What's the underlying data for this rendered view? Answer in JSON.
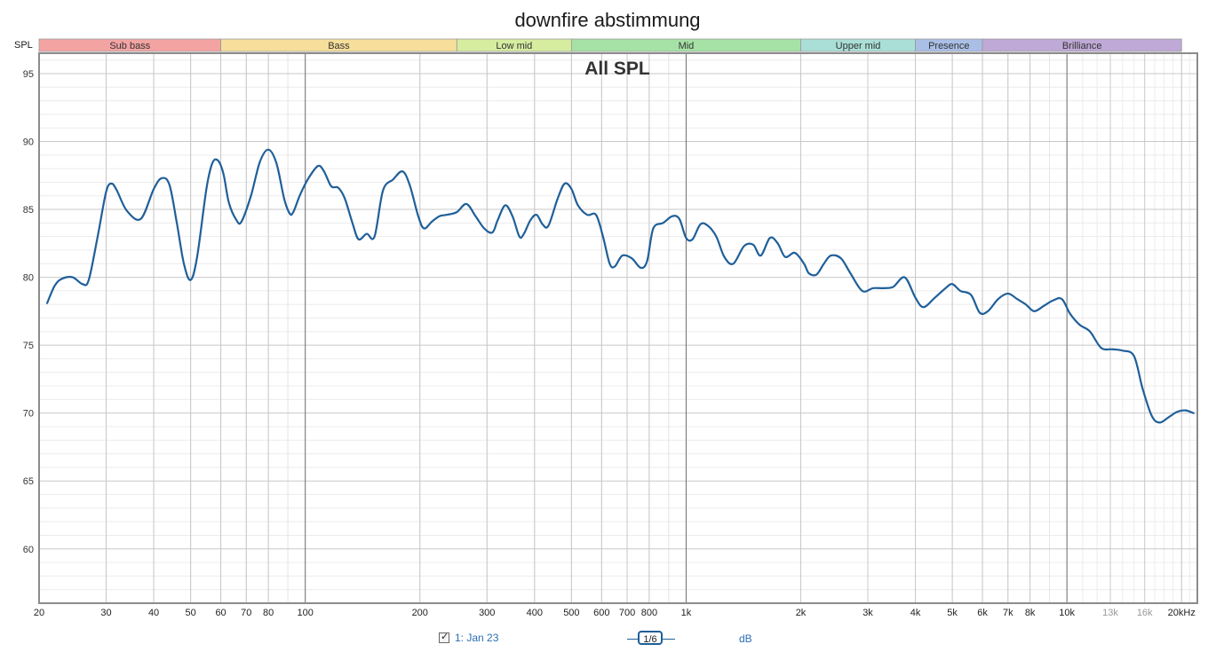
{
  "window_title": "downfire abstimmung",
  "band_row_label": "SPL",
  "bands": [
    {
      "name": "Sub bass",
      "from": 20,
      "to": 60,
      "color": "#f4a3a3"
    },
    {
      "name": "Bass",
      "from": 60,
      "to": 250,
      "color": "#f6df9a"
    },
    {
      "name": "Low mid",
      "from": 250,
      "to": 500,
      "color": "#d6eda0"
    },
    {
      "name": "Mid",
      "from": 500,
      "to": 2000,
      "color": "#a6e2a6"
    },
    {
      "name": "Upper mid",
      "from": 2000,
      "to": 4000,
      "color": "#a9dfd6"
    },
    {
      "name": "Presence",
      "from": 4000,
      "to": 6000,
      "color": "#a9bfe6"
    },
    {
      "name": "Brilliance",
      "from": 6000,
      "to": 20000,
      "color": "#bfa9d6"
    }
  ],
  "chart_data": {
    "type": "line",
    "title": "All SPL",
    "xscale": "log",
    "xlim": [
      20,
      22000
    ],
    "ylim": [
      56,
      96.5
    ],
    "grid": true,
    "x_ticks": [
      {
        "value": 20,
        "label": "20"
      },
      {
        "value": 30,
        "label": "30"
      },
      {
        "value": 40,
        "label": "40"
      },
      {
        "value": 50,
        "label": "50"
      },
      {
        "value": 60,
        "label": "60"
      },
      {
        "value": 70,
        "label": "70"
      },
      {
        "value": 80,
        "label": "80"
      },
      {
        "value": 100,
        "label": "100"
      },
      {
        "value": 200,
        "label": "200"
      },
      {
        "value": 300,
        "label": "300"
      },
      {
        "value": 400,
        "label": "400"
      },
      {
        "value": 500,
        "label": "500"
      },
      {
        "value": 600,
        "label": "600"
      },
      {
        "value": 700,
        "label": "700"
      },
      {
        "value": 800,
        "label": "800"
      },
      {
        "value": 1000,
        "label": "1k"
      },
      {
        "value": 2000,
        "label": "2k"
      },
      {
        "value": 3000,
        "label": "3k"
      },
      {
        "value": 4000,
        "label": "4k"
      },
      {
        "value": 5000,
        "label": "5k"
      },
      {
        "value": 6000,
        "label": "6k"
      },
      {
        "value": 7000,
        "label": "7k"
      },
      {
        "value": 8000,
        "label": "8k"
      },
      {
        "value": 10000,
        "label": "10k"
      },
      {
        "value": 13000,
        "label": "13k"
      },
      {
        "value": 16000,
        "label": "16k"
      },
      {
        "value": 20000,
        "label": "20kHz"
      }
    ],
    "y_ticks": [
      60,
      65,
      70,
      75,
      80,
      85,
      90,
      95
    ],
    "series": [
      {
        "name": "1: Jan 23",
        "color": "#1f5f99",
        "points": [
          [
            21,
            78.1
          ],
          [
            22,
            79.4
          ],
          [
            23,
            79.9
          ],
          [
            24.5,
            80.0
          ],
          [
            26,
            79.5
          ],
          [
            27,
            79.8
          ],
          [
            28.5,
            83.0
          ],
          [
            30,
            86.3
          ],
          [
            31,
            86.9
          ],
          [
            32,
            86.4
          ],
          [
            34,
            84.9
          ],
          [
            37,
            84.3
          ],
          [
            40,
            86.5
          ],
          [
            42,
            87.3
          ],
          [
            44,
            86.8
          ],
          [
            46,
            84.0
          ],
          [
            48,
            81.0
          ],
          [
            50,
            79.8
          ],
          [
            52,
            81.5
          ],
          [
            55,
            86.5
          ],
          [
            57,
            88.4
          ],
          [
            59,
            88.6
          ],
          [
            61,
            87.6
          ],
          [
            63,
            85.5
          ],
          [
            66,
            84.2
          ],
          [
            68,
            84.1
          ],
          [
            72,
            86.0
          ],
          [
            76,
            88.5
          ],
          [
            80,
            89.4
          ],
          [
            84,
            88.4
          ],
          [
            88,
            85.8
          ],
          [
            91,
            84.7
          ],
          [
            93,
            84.8
          ],
          [
            97,
            86.1
          ],
          [
            102,
            87.3
          ],
          [
            108,
            88.2
          ],
          [
            112,
            87.8
          ],
          [
            117,
            86.7
          ],
          [
            122,
            86.6
          ],
          [
            127,
            85.8
          ],
          [
            133,
            84.0
          ],
          [
            138,
            82.8
          ],
          [
            145,
            83.2
          ],
          [
            152,
            83.0
          ],
          [
            160,
            86.4
          ],
          [
            170,
            87.2
          ],
          [
            180,
            87.8
          ],
          [
            188,
            86.8
          ],
          [
            198,
            84.5
          ],
          [
            205,
            83.6
          ],
          [
            215,
            84.1
          ],
          [
            225,
            84.5
          ],
          [
            235,
            84.6
          ],
          [
            250,
            84.8
          ],
          [
            265,
            85.4
          ],
          [
            280,
            84.5
          ],
          [
            295,
            83.6
          ],
          [
            310,
            83.3
          ],
          [
            320,
            84.2
          ],
          [
            335,
            85.3
          ],
          [
            350,
            84.5
          ],
          [
            365,
            83.0
          ],
          [
            375,
            83.2
          ],
          [
            390,
            84.2
          ],
          [
            405,
            84.6
          ],
          [
            420,
            83.9
          ],
          [
            435,
            83.8
          ],
          [
            460,
            85.8
          ],
          [
            480,
            86.9
          ],
          [
            500,
            86.5
          ],
          [
            520,
            85.3
          ],
          [
            550,
            84.6
          ],
          [
            580,
            84.6
          ],
          [
            605,
            83.0
          ],
          [
            630,
            81.0
          ],
          [
            650,
            80.8
          ],
          [
            680,
            81.6
          ],
          [
            720,
            81.4
          ],
          [
            760,
            80.7
          ],
          [
            790,
            81.2
          ],
          [
            820,
            83.6
          ],
          [
            870,
            84.0
          ],
          [
            920,
            84.5
          ],
          [
            960,
            84.3
          ],
          [
            1000,
            82.9
          ],
          [
            1040,
            82.8
          ],
          [
            1090,
            83.9
          ],
          [
            1140,
            83.8
          ],
          [
            1200,
            83.0
          ],
          [
            1260,
            81.5
          ],
          [
            1330,
            81.0
          ],
          [
            1420,
            82.3
          ],
          [
            1500,
            82.4
          ],
          [
            1570,
            81.6
          ],
          [
            1660,
            82.9
          ],
          [
            1740,
            82.5
          ],
          [
            1820,
            81.5
          ],
          [
            1930,
            81.8
          ],
          [
            2040,
            81.0
          ],
          [
            2100,
            80.3
          ],
          [
            2200,
            80.2
          ],
          [
            2300,
            81.0
          ],
          [
            2400,
            81.6
          ],
          [
            2550,
            81.4
          ],
          [
            2700,
            80.3
          ],
          [
            2900,
            79.0
          ],
          [
            3100,
            79.2
          ],
          [
            3300,
            79.2
          ],
          [
            3500,
            79.3
          ],
          [
            3750,
            80.0
          ],
          [
            4000,
            78.5
          ],
          [
            4200,
            77.8
          ],
          [
            4500,
            78.5
          ],
          [
            4800,
            79.2
          ],
          [
            5000,
            79.5
          ],
          [
            5250,
            79.0
          ],
          [
            5600,
            78.7
          ],
          [
            5900,
            77.4
          ],
          [
            6200,
            77.5
          ],
          [
            6600,
            78.4
          ],
          [
            7000,
            78.8
          ],
          [
            7400,
            78.4
          ],
          [
            7800,
            78.0
          ],
          [
            8200,
            77.5
          ],
          [
            8700,
            77.9
          ],
          [
            9200,
            78.3
          ],
          [
            9700,
            78.4
          ],
          [
            10200,
            77.3
          ],
          [
            10800,
            76.5
          ],
          [
            11500,
            76.0
          ],
          [
            12300,
            74.8
          ],
          [
            13200,
            74.7
          ],
          [
            14000,
            74.6
          ],
          [
            15000,
            74.2
          ],
          [
            15800,
            71.8
          ],
          [
            16700,
            69.8
          ],
          [
            17500,
            69.3
          ],
          [
            18500,
            69.7
          ],
          [
            19500,
            70.1
          ],
          [
            20500,
            70.2
          ],
          [
            21500,
            70.0
          ]
        ]
      }
    ]
  },
  "footer": {
    "legend_label": "1: Jan 23",
    "legend_checked": true,
    "smoothing_label": "1/6",
    "unit_label": "dB"
  }
}
